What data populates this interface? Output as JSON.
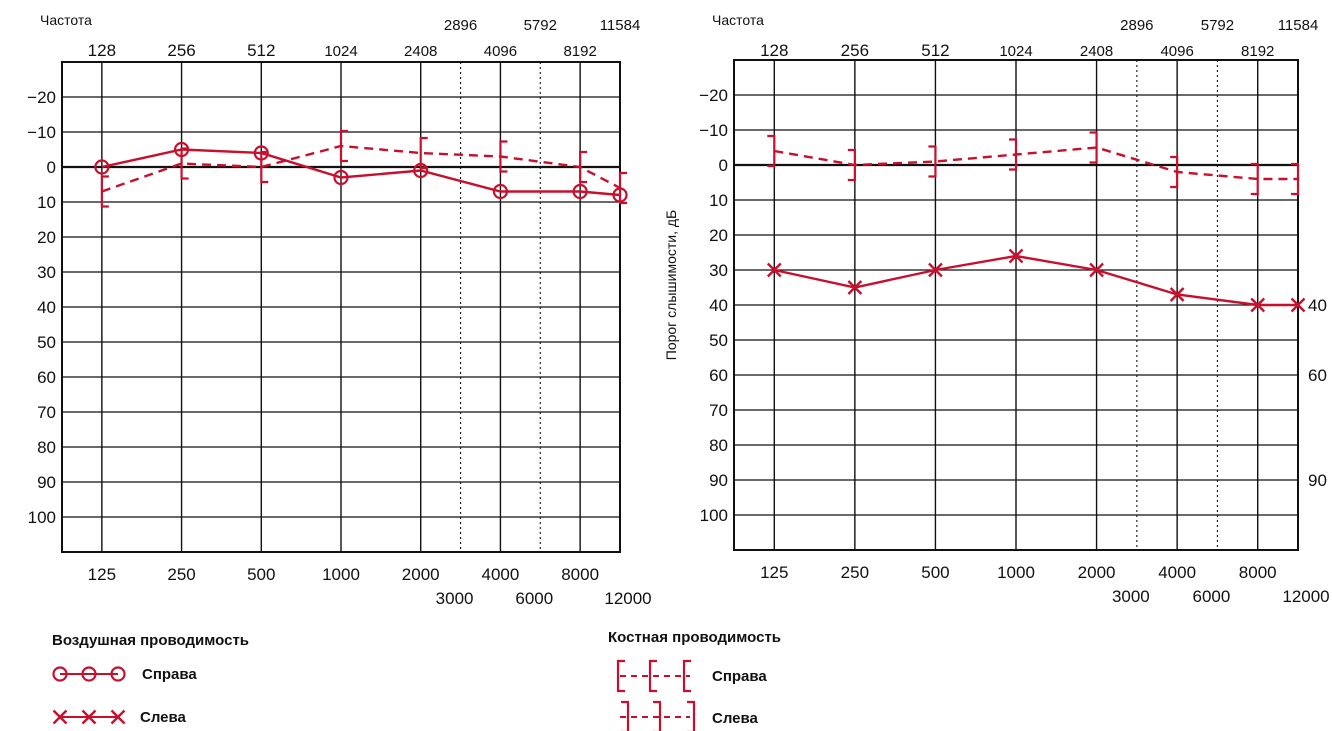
{
  "colors": {
    "accent": "#c8102e",
    "grid": "#111111",
    "background": "#ffffff"
  },
  "chart_data": [
    {
      "type": "line",
      "panel": "left",
      "top_axis_title": "Частота",
      "top_ticks_row1": [
        "2896",
        "5792",
        "11584"
      ],
      "top_ticks_row2": [
        "128",
        "256",
        "512",
        "1024",
        "2408",
        "4096",
        "8192"
      ],
      "bottom_ticks_row1": [
        "125",
        "250",
        "500",
        "1000",
        "2000",
        "4000",
        "8000"
      ],
      "bottom_ticks_row2": [
        "3000",
        "6000",
        "12000"
      ],
      "ylabel": "",
      "ylim": [
        -30,
        110
      ],
      "y_ticks": [
        "−20",
        "−10",
        "0",
        "10",
        "20",
        "30",
        "40",
        "50",
        "60",
        "70",
        "80",
        "90",
        "100"
      ],
      "right_labels": [],
      "series": [
        {
          "name": "Воздушная проводимость — Справа",
          "style": "air-right",
          "x": [
            125,
            250,
            500,
            1000,
            2000,
            4000,
            8000,
            12000
          ],
          "y": [
            0,
            -5,
            -4,
            3,
            1,
            7,
            7,
            8
          ]
        },
        {
          "name": "Костная проводимость — Справа",
          "style": "bone-right",
          "x": [
            125,
            250,
            500,
            1000,
            2000,
            4000,
            8000,
            12000
          ],
          "y": [
            7,
            -1,
            0,
            -6,
            -4,
            -3,
            0,
            6
          ]
        }
      ]
    },
    {
      "type": "line",
      "panel": "right",
      "top_axis_title": "Частота",
      "top_ticks_row1": [
        "2896",
        "5792",
        "11584"
      ],
      "top_ticks_row2": [
        "128",
        "256",
        "512",
        "1024",
        "2408",
        "4096",
        "8192"
      ],
      "bottom_ticks_row1": [
        "125",
        "250",
        "500",
        "1000",
        "2000",
        "4000",
        "8000"
      ],
      "bottom_ticks_row2": [
        "3000",
        "6000",
        "12000"
      ],
      "ylabel": "Порог слышимости, дБ",
      "ylim": [
        -30,
        110
      ],
      "y_ticks": [
        "−20",
        "−10",
        "0",
        "10",
        "20",
        "30",
        "40",
        "50",
        "60",
        "70",
        "80",
        "90",
        "100"
      ],
      "right_labels": [
        {
          "value": 40,
          "text": "40"
        },
        {
          "value": 60,
          "text": "60"
        },
        {
          "value": 90,
          "text": "90"
        }
      ],
      "series": [
        {
          "name": "Воздушная проводимость — Слева",
          "style": "air-left",
          "x": [
            125,
            250,
            500,
            1000,
            2000,
            4000,
            8000,
            12000
          ],
          "y": [
            30,
            35,
            30,
            26,
            30,
            37,
            40,
            40
          ]
        },
        {
          "name": "Костная проводимость — Слева",
          "style": "bone-left",
          "x": [
            125,
            250,
            500,
            1000,
            2000,
            4000,
            8000,
            12000
          ],
          "y": [
            -4,
            0,
            -1,
            -3,
            -5,
            2,
            4,
            4
          ]
        }
      ]
    }
  ],
  "legend": {
    "air": {
      "title": "Воздушная проводимость",
      "right": "Справа",
      "left": "Слева"
    },
    "bone": {
      "title": "Костная  проводимость",
      "right": "Справа",
      "left": "Слева"
    }
  }
}
